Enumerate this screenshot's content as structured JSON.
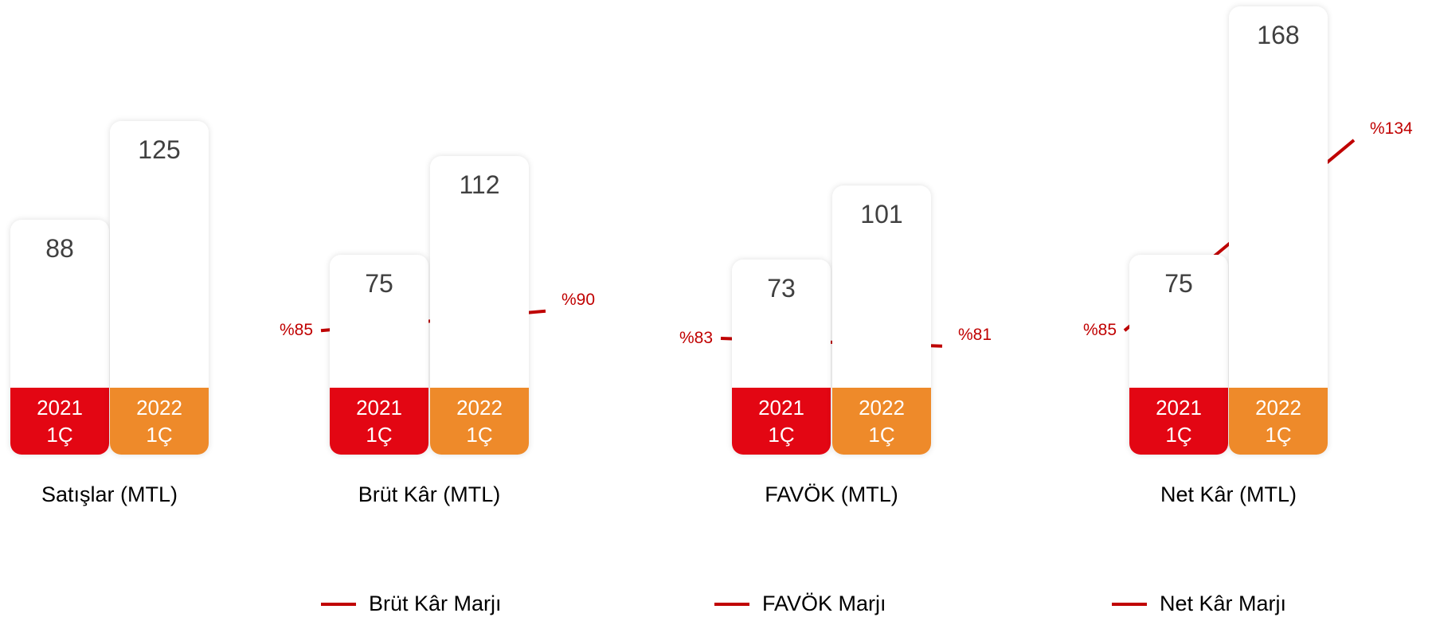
{
  "chart_data": [
    {
      "type": "bar",
      "title": "Satışlar (MTL)",
      "categories": [
        "2021 1Ç",
        "2022 1Ç"
      ],
      "values": [
        88,
        125
      ],
      "colors": [
        "#e30613",
        "#ee8a2a"
      ]
    },
    {
      "type": "bar",
      "title": "Brüt Kâr (MTL)",
      "categories": [
        "2021 1Ç",
        "2022 1Ç"
      ],
      "values": [
        75,
        112
      ],
      "colors": [
        "#e30613",
        "#ee8a2a"
      ],
      "margin": {
        "name": "Brüt Kâr Marjı",
        "values": [
          85,
          90
        ],
        "value_labels": [
          "%85",
          "%90"
        ],
        "color": "#c00000"
      }
    },
    {
      "type": "bar",
      "title": "FAVÖK (MTL)",
      "categories": [
        "2021 1Ç",
        "2022 1Ç"
      ],
      "values": [
        73,
        101
      ],
      "colors": [
        "#e30613",
        "#ee8a2a"
      ],
      "margin": {
        "name": "FAVÖK Marjı",
        "values": [
          83,
          81
        ],
        "value_labels": [
          "%83",
          "%81"
        ],
        "color": "#c00000"
      }
    },
    {
      "type": "bar",
      "title": "Net Kâr (MTL)",
      "categories": [
        "2021 1Ç",
        "2022 1Ç"
      ],
      "values": [
        75,
        168
      ],
      "colors": [
        "#e30613",
        "#ee8a2a"
      ],
      "margin": {
        "name": "Net Kâr Marjı",
        "values": [
          85,
          134
        ],
        "value_labels": [
          "%85",
          "%134"
        ],
        "color": "#c00000"
      }
    }
  ]
}
